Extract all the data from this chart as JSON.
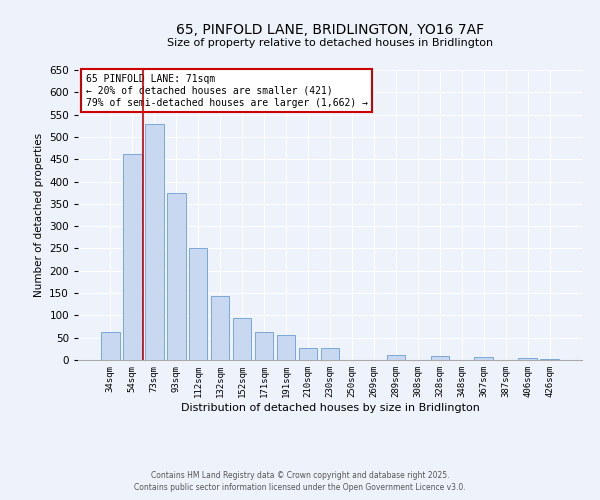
{
  "title": "65, PINFOLD LANE, BRIDLINGTON, YO16 7AF",
  "subtitle": "Size of property relative to detached houses in Bridlington",
  "xlabel": "Distribution of detached houses by size in Bridlington",
  "ylabel": "Number of detached properties",
  "bar_labels": [
    "34sqm",
    "54sqm",
    "73sqm",
    "93sqm",
    "112sqm",
    "132sqm",
    "152sqm",
    "171sqm",
    "191sqm",
    "210sqm",
    "230sqm",
    "250sqm",
    "269sqm",
    "289sqm",
    "308sqm",
    "328sqm",
    "348sqm",
    "367sqm",
    "387sqm",
    "406sqm",
    "426sqm"
  ],
  "bar_values": [
    63,
    462,
    530,
    375,
    250,
    143,
    95,
    63,
    57,
    27,
    28,
    0,
    0,
    12,
    0,
    8,
    0,
    7,
    0,
    5,
    3
  ],
  "bar_color": "#c8d8f0",
  "bar_edge_color": "#7aa8d8",
  "background_color": "#eef2fa",
  "vline_color": "#cc0000",
  "annotation_text": "65 PINFOLD LANE: 71sqm\n← 20% of detached houses are smaller (421)\n79% of semi-detached houses are larger (1,662) →",
  "annotation_box_color": "#cc0000",
  "ylim": [
    0,
    650
  ],
  "yticks": [
    0,
    50,
    100,
    150,
    200,
    250,
    300,
    350,
    400,
    450,
    500,
    550,
    600,
    650
  ],
  "footer1": "Contains HM Land Registry data © Crown copyright and database right 2025.",
  "footer2": "Contains public sector information licensed under the Open Government Licence v3.0."
}
